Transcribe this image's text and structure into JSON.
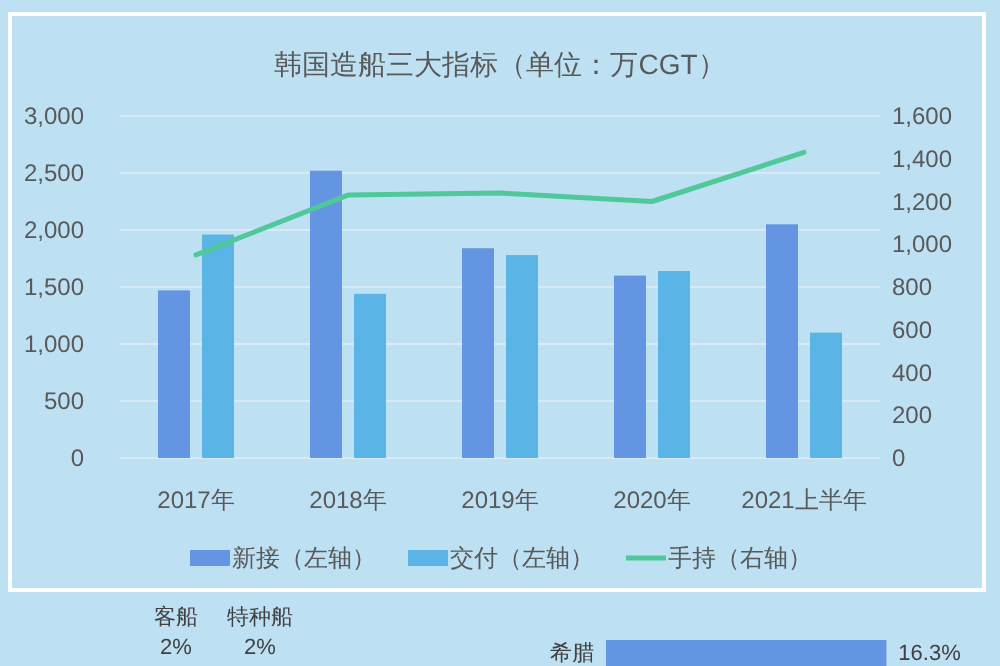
{
  "chart_data": [
    {
      "type": "bar",
      "title": "韩国造船三大指标（单位：万CGT）",
      "categories": [
        "2017年",
        "2018年",
        "2019年",
        "2020年",
        "2021上半年"
      ],
      "series": [
        {
          "name": "新接（左轴）",
          "color": "#6495e2",
          "values": [
            1470,
            2520,
            1840,
            1600,
            2050
          ]
        },
        {
          "name": "交付（左轴）",
          "color": "#5ab4e5",
          "values": [
            1960,
            1440,
            1780,
            1640,
            1100
          ]
        },
        {
          "name": "手持（右轴）",
          "type": "line",
          "axis": "y2",
          "color": "#4fc89a",
          "values": [
            950,
            1230,
            1240,
            1200,
            1430
          ]
        }
      ],
      "ylim": [
        0,
        3000
      ],
      "yticks": [
        {
          "value": 0,
          "label": "0"
        },
        {
          "value": 500,
          "label": "500"
        },
        {
          "value": 1000,
          "label": "1,000"
        },
        {
          "value": 1500,
          "label": "1,500"
        },
        {
          "value": 2000,
          "label": "2,000"
        },
        {
          "value": 2500,
          "label": "2,500"
        },
        {
          "value": 3000,
          "label": "3,000"
        }
      ],
      "y2lim": [
        0,
        1600
      ],
      "y2ticks": [
        {
          "value": 0,
          "label": "0"
        },
        {
          "value": 200,
          "label": "200"
        },
        {
          "value": 400,
          "label": "400"
        },
        {
          "value": 600,
          "label": "600"
        },
        {
          "value": 800,
          "label": "800"
        },
        {
          "value": 1000,
          "label": "1,000"
        },
        {
          "value": 1200,
          "label": "1,200"
        },
        {
          "value": 1400,
          "label": "1,400"
        },
        {
          "value": 1600,
          "label": "1,600"
        }
      ],
      "grid": "y",
      "legend": "bottom"
    },
    {
      "type": "other",
      "annotations": [
        "客船",
        "2%",
        "特种船",
        "2%"
      ]
    },
    {
      "type": "bar",
      "orientation": "horizontal",
      "categories": [
        "希腊"
      ],
      "values": [
        16.3
      ],
      "value_labels": [
        "16.3%"
      ],
      "color": "#6495e2"
    }
  ]
}
